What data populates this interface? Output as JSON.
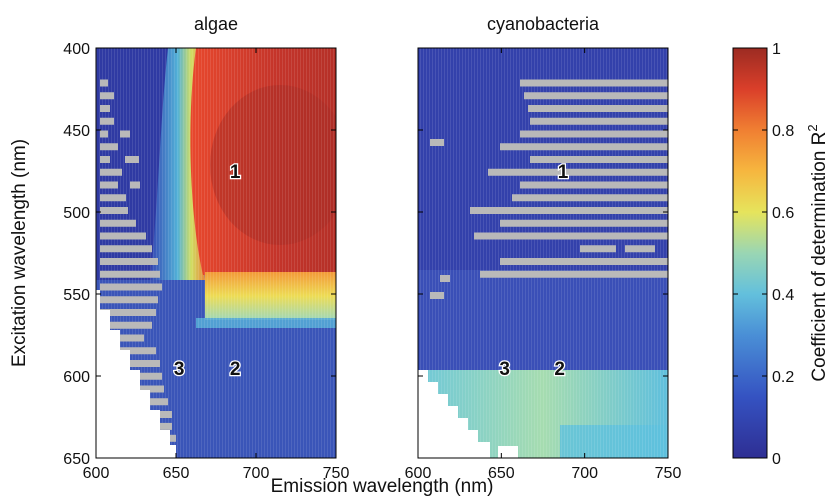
{
  "figure": {
    "xlabel": "Emission wavelength (nm)",
    "ylabel": "Excitation wavelength (nm)",
    "colorbar_label": "Coefficient of determination R",
    "colorbar_superscript": "2"
  },
  "chart_data": [
    {
      "type": "heatmap",
      "title": "algae",
      "xlim": [
        600,
        750
      ],
      "ylim": [
        400,
        650
      ],
      "xticks": [
        600,
        650,
        700,
        750
      ],
      "yticks": [
        400,
        450,
        500,
        550,
        600,
        650
      ],
      "xtick_labels": [
        "600",
        "650",
        "700",
        "750"
      ],
      "ytick_labels": [
        "400",
        "450",
        "500",
        "550",
        "600",
        "650"
      ],
      "y_axis_inverted": true,
      "annotations": [
        {
          "text": "1",
          "x": 687,
          "y": 475
        },
        {
          "text": "2",
          "x": 687,
          "y": 595
        },
        {
          "text": "3",
          "x": 652,
          "y": 595
        }
      ],
      "regions": [
        {
          "description": "emission < excitation (blank)",
          "value": null
        },
        {
          "excitation": [
            400,
            528
          ],
          "emission": [
            665,
            750
          ],
          "r2": 0.9
        },
        {
          "excitation": [
            528,
            555
          ],
          "emission": [
            665,
            750
          ],
          "r2": 0.65
        },
        {
          "excitation": [
            400,
            520
          ],
          "emission": [
            600,
            640
          ],
          "r2": 0.08
        },
        {
          "excitation": [
            560,
            650
          ],
          "emission": [
            600,
            750
          ],
          "r2": 0.12
        }
      ]
    },
    {
      "type": "heatmap",
      "title": "cyanobacteria",
      "xlim": [
        600,
        750
      ],
      "ylim": [
        400,
        650
      ],
      "xticks": [
        600,
        650,
        700,
        750
      ],
      "yticks": [
        400,
        450,
        500,
        550,
        600,
        650
      ],
      "xtick_labels": [
        "600",
        "650",
        "700",
        "750"
      ],
      "ytick_labels": [],
      "y_axis_inverted": true,
      "annotations": [
        {
          "text": "1",
          "x": 687,
          "y": 475
        },
        {
          "text": "2",
          "x": 685,
          "y": 595
        },
        {
          "text": "3",
          "x": 652,
          "y": 595
        }
      ],
      "regions": [
        {
          "description": "emission < excitation (blank)",
          "value": null
        },
        {
          "excitation": [
            400,
            570
          ],
          "emission": [
            600,
            750
          ],
          "r2": 0.12
        },
        {
          "excitation": [
            575,
            650
          ],
          "emission": [
            630,
            750
          ],
          "r2": 0.35
        }
      ]
    }
  ],
  "colorbar": {
    "range": [
      0,
      1
    ],
    "ticks": [
      "0",
      "0.2",
      "0.4",
      "0.6",
      "0.8",
      "1"
    ],
    "tick_values": [
      0,
      0.2,
      0.4,
      0.6,
      0.8,
      1
    ],
    "colormap": [
      "#2b2b8f",
      "#3a5bc4",
      "#4fa3d8",
      "#8fd3c4",
      "#e8e55a",
      "#f6a03a",
      "#e0432b",
      "#9e2a22"
    ]
  },
  "colors": {
    "missing": "#b9b9b9",
    "blank": "#ffffff"
  }
}
